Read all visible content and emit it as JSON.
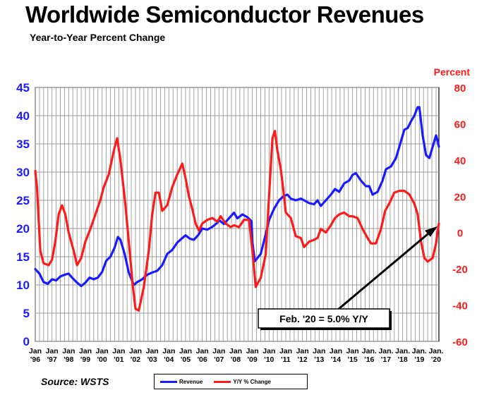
{
  "header": {
    "title": "Worldwide Semiconductor Revenues",
    "subtitle": "Year-to-Year Percent Change",
    "right_axis_title": "Percent"
  },
  "footer": {
    "source": "Source: WSTS"
  },
  "annotation": {
    "text": "Feb. '20 = 5.0% Y/Y"
  },
  "colors": {
    "revenue": "#1a1aff",
    "yoy": "#ff1a1a",
    "left_axis": "#1a1aff",
    "right_axis": "#ff1a1a",
    "grid": "#999999"
  },
  "chart_data": {
    "type": "line",
    "title": "Worldwide Semiconductor Revenues",
    "subtitle": "Year-to-Year Percent Change",
    "grid": true,
    "legend_position": "bottom",
    "x_labels": [
      {
        "mon": "Jan",
        "yr": "'96"
      },
      {
        "mon": "Jan",
        "yr": "'97"
      },
      {
        "mon": "Jan",
        "yr": "'98"
      },
      {
        "mon": "Jan",
        "yr": "'99"
      },
      {
        "mon": "Jan",
        "yr": "'00"
      },
      {
        "mon": "Jan",
        "yr": "'01"
      },
      {
        "mon": "Jan",
        "yr": "'02"
      },
      {
        "mon": "Jan",
        "yr": "'03"
      },
      {
        "mon": "Jan",
        "yr": "'04"
      },
      {
        "mon": "Jan",
        "yr": "'05"
      },
      {
        "mon": "Jan",
        "yr": "'06"
      },
      {
        "mon": "Jan",
        "yr": "'07"
      },
      {
        "mon": "Jan",
        "yr": "'08"
      },
      {
        "mon": "Jan",
        "yr": "'09"
      },
      {
        "mon": "Jan",
        "yr": "'10"
      },
      {
        "mon": "Jan",
        "yr": "'11"
      },
      {
        "mon": "Jan",
        "yr": "'12"
      },
      {
        "mon": "Jan",
        "yr": "'13"
      },
      {
        "mon": "Jan",
        "yr": "'14"
      },
      {
        "mon": "Jan",
        "yr": "'15"
      },
      {
        "mon": "Jan.",
        "yr": "'16"
      },
      {
        "mon": "Jan.",
        "yr": "'17"
      },
      {
        "mon": "Jan.",
        "yr": "'18"
      },
      {
        "mon": "Jan.",
        "yr": "'19"
      },
      {
        "mon": "Jan.",
        "yr": "'20"
      }
    ],
    "x_range": [
      1996.0,
      2020.17
    ],
    "left_axis": {
      "ticks": [
        0,
        5,
        10,
        15,
        20,
        25,
        30,
        35,
        40,
        45
      ],
      "ylim": [
        0,
        45
      ]
    },
    "right_axis": {
      "label": "Percent",
      "ticks": [
        -60,
        -40,
        -20,
        0,
        20,
        40,
        60,
        80
      ],
      "ylim": [
        -60,
        80
      ]
    },
    "series": [
      {
        "name": "Revenue",
        "axis": "left",
        "color": "#1a1aff",
        "points": [
          [
            1996.0,
            12.8
          ],
          [
            1996.25,
            12.0
          ],
          [
            1996.5,
            10.5
          ],
          [
            1996.75,
            10.2
          ],
          [
            1997.0,
            11.0
          ],
          [
            1997.25,
            10.8
          ],
          [
            1997.5,
            11.5
          ],
          [
            1997.75,
            11.8
          ],
          [
            1998.0,
            12.0
          ],
          [
            1998.2,
            11.3
          ],
          [
            1998.5,
            10.4
          ],
          [
            1998.75,
            9.8
          ],
          [
            1999.0,
            10.4
          ],
          [
            1999.25,
            11.3
          ],
          [
            1999.5,
            11.0
          ],
          [
            1999.75,
            11.3
          ],
          [
            2000.0,
            12.3
          ],
          [
            2000.25,
            14.3
          ],
          [
            2000.5,
            15.0
          ],
          [
            2000.75,
            16.6
          ],
          [
            2000.95,
            18.5
          ],
          [
            2001.1,
            18.0
          ],
          [
            2001.35,
            15.5
          ],
          [
            2001.6,
            12.2
          ],
          [
            2001.9,
            10.0
          ],
          [
            2002.1,
            10.5
          ],
          [
            2002.4,
            11.0
          ],
          [
            2002.7,
            11.8
          ],
          [
            2003.0,
            12.2
          ],
          [
            2003.3,
            12.5
          ],
          [
            2003.6,
            13.5
          ],
          [
            2003.9,
            15.5
          ],
          [
            2004.2,
            16.2
          ],
          [
            2004.5,
            17.5
          ],
          [
            2004.8,
            18.3
          ],
          [
            2005.0,
            18.8
          ],
          [
            2005.25,
            18.2
          ],
          [
            2005.5,
            18.0
          ],
          [
            2005.75,
            18.8
          ],
          [
            2006.0,
            20.0
          ],
          [
            2006.3,
            19.8
          ],
          [
            2006.6,
            20.3
          ],
          [
            2006.9,
            21.0
          ],
          [
            2007.0,
            21.5
          ],
          [
            2007.3,
            20.8
          ],
          [
            2007.6,
            21.8
          ],
          [
            2007.9,
            22.8
          ],
          [
            2008.1,
            21.8
          ],
          [
            2008.4,
            22.5
          ],
          [
            2008.7,
            22.0
          ],
          [
            2008.95,
            21.3
          ],
          [
            2009.0,
            17.5
          ],
          [
            2009.15,
            14.2
          ],
          [
            2009.5,
            15.5
          ],
          [
            2009.8,
            19.0
          ],
          [
            2010.0,
            21.5
          ],
          [
            2010.3,
            23.5
          ],
          [
            2010.6,
            25.0
          ],
          [
            2010.9,
            25.8
          ],
          [
            2011.1,
            26.0
          ],
          [
            2011.3,
            25.3
          ],
          [
            2011.6,
            25.0
          ],
          [
            2011.9,
            25.3
          ],
          [
            2012.1,
            25.0
          ],
          [
            2012.4,
            24.5
          ],
          [
            2012.7,
            24.3
          ],
          [
            2012.9,
            25.0
          ],
          [
            2013.1,
            24.0
          ],
          [
            2013.4,
            25.0
          ],
          [
            2013.7,
            26.0
          ],
          [
            2013.95,
            27.0
          ],
          [
            2014.2,
            26.5
          ],
          [
            2014.5,
            28.0
          ],
          [
            2014.8,
            28.5
          ],
          [
            2015.0,
            29.5
          ],
          [
            2015.2,
            29.8
          ],
          [
            2015.5,
            28.5
          ],
          [
            2015.8,
            27.5
          ],
          [
            2016.0,
            27.5
          ],
          [
            2016.2,
            26.0
          ],
          [
            2016.5,
            26.5
          ],
          [
            2016.8,
            28.5
          ],
          [
            2017.0,
            30.5
          ],
          [
            2017.3,
            31.0
          ],
          [
            2017.6,
            32.5
          ],
          [
            2017.9,
            35.5
          ],
          [
            2018.1,
            37.5
          ],
          [
            2018.3,
            37.8
          ],
          [
            2018.5,
            39.0
          ],
          [
            2018.7,
            40.0
          ],
          [
            2018.9,
            41.5
          ],
          [
            2019.0,
            41.5
          ],
          [
            2019.2,
            36.5
          ],
          [
            2019.4,
            33.0
          ],
          [
            2019.6,
            32.5
          ],
          [
            2019.8,
            34.5
          ],
          [
            2020.0,
            36.5
          ],
          [
            2020.1,
            35.5
          ],
          [
            2020.17,
            34.5
          ]
        ]
      },
      {
        "name": "Y/Y % Change",
        "axis": "right",
        "color": "#ff1a1a",
        "points": [
          [
            1996.0,
            34
          ],
          [
            1996.1,
            25
          ],
          [
            1996.3,
            -10
          ],
          [
            1996.5,
            -17
          ],
          [
            1996.8,
            -18
          ],
          [
            1997.0,
            -15
          ],
          [
            1997.2,
            -5
          ],
          [
            1997.4,
            10
          ],
          [
            1997.6,
            15
          ],
          [
            1997.8,
            10
          ],
          [
            1998.0,
            0
          ],
          [
            1998.3,
            -10
          ],
          [
            1998.5,
            -18
          ],
          [
            1998.75,
            -14
          ],
          [
            1999.0,
            -5
          ],
          [
            1999.3,
            2
          ],
          [
            1999.6,
            10
          ],
          [
            1999.9,
            18
          ],
          [
            2000.1,
            25
          ],
          [
            2000.4,
            32
          ],
          [
            2000.7,
            45
          ],
          [
            2000.9,
            52
          ],
          [
            2001.1,
            40
          ],
          [
            2001.4,
            15
          ],
          [
            2001.6,
            -5
          ],
          [
            2001.85,
            -30
          ],
          [
            2002.0,
            -42
          ],
          [
            2002.2,
            -43
          ],
          [
            2002.5,
            -30
          ],
          [
            2002.8,
            -10
          ],
          [
            2003.0,
            10
          ],
          [
            2003.2,
            22
          ],
          [
            2003.4,
            22
          ],
          [
            2003.6,
            12
          ],
          [
            2003.9,
            15
          ],
          [
            2004.2,
            25
          ],
          [
            2004.5,
            32
          ],
          [
            2004.8,
            38
          ],
          [
            2005.0,
            30
          ],
          [
            2005.2,
            20
          ],
          [
            2005.4,
            13
          ],
          [
            2005.6,
            5
          ],
          [
            2005.8,
            1
          ],
          [
            2006.0,
            5
          ],
          [
            2006.3,
            7
          ],
          [
            2006.6,
            8
          ],
          [
            2006.9,
            6
          ],
          [
            2007.1,
            9
          ],
          [
            2007.4,
            5
          ],
          [
            2007.7,
            3
          ],
          [
            2007.9,
            4
          ],
          [
            2008.2,
            3
          ],
          [
            2008.5,
            7
          ],
          [
            2008.8,
            7
          ],
          [
            2009.0,
            -10
          ],
          [
            2009.2,
            -30
          ],
          [
            2009.5,
            -25
          ],
          [
            2009.8,
            -12
          ],
          [
            2010.0,
            20
          ],
          [
            2010.2,
            52
          ],
          [
            2010.35,
            56
          ],
          [
            2010.5,
            45
          ],
          [
            2010.7,
            35
          ],
          [
            2010.9,
            20
          ],
          [
            2011.0,
            11
          ],
          [
            2011.3,
            8
          ],
          [
            2011.6,
            -2
          ],
          [
            2011.9,
            -3
          ],
          [
            2012.1,
            -8
          ],
          [
            2012.4,
            -5
          ],
          [
            2012.7,
            -4
          ],
          [
            2012.9,
            -3
          ],
          [
            2013.1,
            2
          ],
          [
            2013.4,
            0
          ],
          [
            2013.7,
            4
          ],
          [
            2013.95,
            8
          ],
          [
            2014.2,
            10
          ],
          [
            2014.5,
            11
          ],
          [
            2014.8,
            9
          ],
          [
            2015.0,
            9
          ],
          [
            2015.3,
            8
          ],
          [
            2015.6,
            2
          ],
          [
            2015.9,
            -3
          ],
          [
            2016.1,
            -6
          ],
          [
            2016.4,
            -6
          ],
          [
            2016.7,
            2
          ],
          [
            2016.95,
            12
          ],
          [
            2017.2,
            16
          ],
          [
            2017.5,
            22
          ],
          [
            2017.8,
            23
          ],
          [
            2018.1,
            23
          ],
          [
            2018.4,
            21
          ],
          [
            2018.7,
            16
          ],
          [
            2018.9,
            10
          ],
          [
            2019.1,
            -5
          ],
          [
            2019.3,
            -14
          ],
          [
            2019.5,
            -16
          ],
          [
            2019.8,
            -14
          ],
          [
            2020.0,
            -6
          ],
          [
            2020.08,
            0
          ],
          [
            2020.17,
            5
          ]
        ]
      }
    ]
  }
}
